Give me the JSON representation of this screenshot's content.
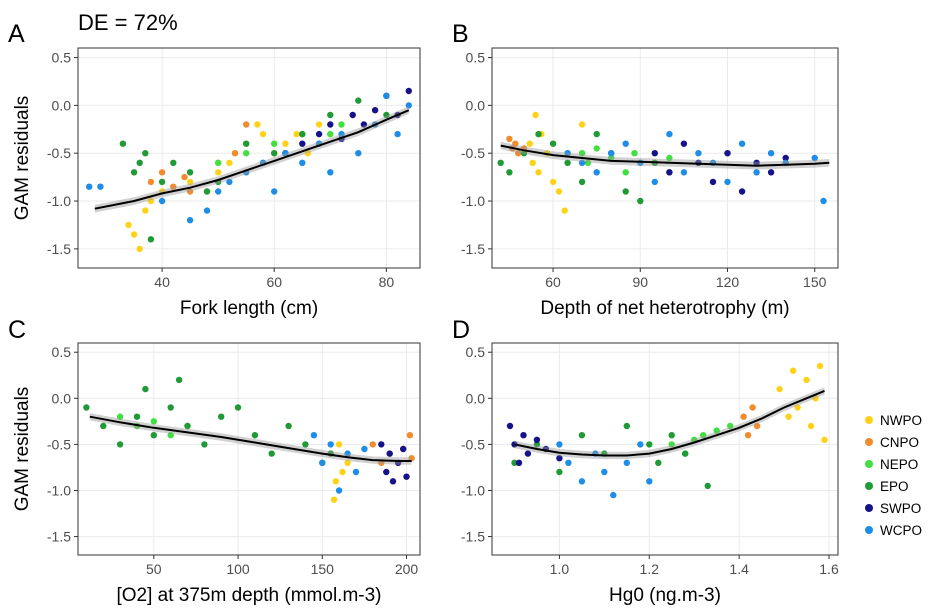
{
  "figure": {
    "header": "DE = 72%",
    "ylabel": "GAM residuals",
    "legend": [
      {
        "label": "NWPO",
        "color": "#FFD21A"
      },
      {
        "label": "CNPO",
        "color": "#F28A2E"
      },
      {
        "label": "NEPO",
        "color": "#3FE03F"
      },
      {
        "label": "EPO",
        "color": "#1F9A35"
      },
      {
        "label": "SWPO",
        "color": "#16128A"
      },
      {
        "label": "WCPO",
        "color": "#1E8DE8"
      }
    ]
  },
  "chart_data": [
    {
      "panel": "A",
      "type": "scatter",
      "xlabel": "Fork length (cm)",
      "ylabel": "GAM residuals",
      "xlim": [
        25,
        86
      ],
      "ylim": [
        -1.7,
        0.6
      ],
      "xticks": [
        40,
        60,
        80
      ],
      "yticks": [
        -1.5,
        -1.0,
        -0.5,
        0.0,
        0.5
      ],
      "ytick_labels": [
        "-1.5",
        "-1.0",
        "-0.5",
        "0.0",
        "0.5"
      ],
      "series": [
        {
          "name": "NWPO",
          "x": [
            34,
            35,
            36,
            37,
            38,
            40,
            45,
            48,
            50,
            52,
            55,
            57,
            58,
            60,
            62,
            64,
            66,
            68,
            70
          ],
          "y": [
            -1.25,
            -1.35,
            -1.5,
            -1.1,
            -1.0,
            -0.9,
            -0.8,
            -0.9,
            -0.7,
            -0.6,
            -0.4,
            -0.2,
            -0.3,
            -0.5,
            -0.4,
            -0.3,
            -0.5,
            -0.2,
            -0.3
          ]
        },
        {
          "name": "CNPO",
          "x": [
            38,
            40,
            42,
            44,
            45,
            50,
            53,
            55
          ],
          "y": [
            -0.8,
            -0.7,
            -0.85,
            -0.75,
            -0.9,
            -0.6,
            -0.5,
            -0.2
          ]
        },
        {
          "name": "NEPO",
          "x": [
            50,
            55,
            58,
            60,
            62,
            65,
            68,
            70,
            72
          ],
          "y": [
            -0.6,
            -0.5,
            -0.6,
            -0.4,
            -0.5,
            -0.3,
            -0.4,
            -0.3,
            -0.2
          ]
        },
        {
          "name": "EPO",
          "x": [
            33,
            35,
            36,
            37,
            38,
            40,
            42,
            45,
            48,
            50,
            55,
            60,
            65,
            70,
            75,
            80
          ],
          "y": [
            -0.4,
            -0.7,
            -0.6,
            -0.5,
            -1.4,
            -0.8,
            -0.6,
            -0.7,
            -0.9,
            -0.8,
            -0.4,
            -0.5,
            -0.3,
            -0.1,
            0.05,
            -0.1
          ]
        },
        {
          "name": "SWPO",
          "x": [
            62,
            65,
            68,
            70,
            72,
            74,
            76,
            78,
            80,
            82,
            84
          ],
          "y": [
            -0.5,
            -0.4,
            -0.3,
            -0.2,
            -0.35,
            -0.1,
            -0.2,
            -0.05,
            0.1,
            -0.1,
            0.15
          ]
        },
        {
          "name": "WCPO",
          "x": [
            27,
            29,
            40,
            45,
            48,
            50,
            52,
            55,
            58,
            60,
            62,
            65,
            68,
            70,
            72,
            75,
            78,
            80,
            82,
            84
          ],
          "y": [
            -0.85,
            -0.85,
            -1.0,
            -1.2,
            -1.1,
            -0.9,
            -0.8,
            -0.7,
            -0.6,
            -0.9,
            -0.5,
            -0.6,
            -0.4,
            -0.7,
            -0.3,
            -0.5,
            -0.2,
            0.1,
            -0.3,
            0.0
          ]
        }
      ],
      "trend": {
        "x": [
          28,
          35,
          40,
          45,
          50,
          55,
          60,
          65,
          70,
          75,
          80,
          84
        ],
        "y": [
          -1.08,
          -1.0,
          -0.92,
          -0.86,
          -0.78,
          -0.68,
          -0.58,
          -0.48,
          -0.38,
          -0.28,
          -0.15,
          -0.05
        ]
      }
    },
    {
      "panel": "B",
      "type": "scatter",
      "xlabel": "Depth of net heterotrophy (m)",
      "xlim": [
        39,
        158
      ],
      "ylim": [
        -1.7,
        0.6
      ],
      "xticks": [
        60,
        90,
        120,
        150
      ],
      "yticks": [
        -1.5,
        -1.0,
        -0.5,
        0.0,
        0.5
      ],
      "ytick_labels": [
        "-1.5",
        "-1.0",
        "-0.5",
        "0.0",
        "0.5"
      ],
      "series": [
        {
          "name": "NWPO",
          "x": [
            52,
            53,
            54,
            55,
            56,
            58,
            60,
            62,
            64,
            65,
            70
          ],
          "y": [
            -0.4,
            -0.6,
            -0.1,
            -0.7,
            -0.3,
            -0.5,
            -0.8,
            -0.9,
            -1.1,
            -0.5,
            -0.2
          ]
        },
        {
          "name": "CNPO",
          "x": [
            45,
            46,
            47,
            48,
            50
          ],
          "y": [
            -0.35,
            -0.45,
            -0.4,
            -0.5,
            -0.45
          ]
        },
        {
          "name": "NEPO",
          "x": [
            70,
            72,
            75,
            80,
            85,
            88,
            95,
            100
          ],
          "y": [
            -0.5,
            -0.6,
            -0.45,
            -0.55,
            -0.7,
            -0.5,
            -0.6,
            -0.55
          ]
        },
        {
          "name": "EPO",
          "x": [
            42,
            45,
            50,
            55,
            60,
            65,
            70,
            75,
            80,
            85,
            90,
            95,
            100
          ],
          "y": [
            -0.6,
            -0.7,
            -0.5,
            -0.3,
            -0.4,
            -0.6,
            -0.8,
            -0.3,
            -0.5,
            -0.9,
            -1.0,
            -0.6,
            -0.7
          ]
        },
        {
          "name": "SWPO",
          "x": [
            95,
            100,
            105,
            110,
            115,
            120,
            125,
            130,
            135,
            140
          ],
          "y": [
            -0.5,
            -0.7,
            -0.4,
            -0.6,
            -0.8,
            -0.5,
            -0.9,
            -0.6,
            -0.7,
            -0.55
          ]
        },
        {
          "name": "WCPO",
          "x": [
            65,
            70,
            75,
            80,
            85,
            90,
            95,
            100,
            105,
            110,
            115,
            120,
            125,
            130,
            135,
            140,
            150,
            153
          ],
          "y": [
            -0.5,
            -0.6,
            -0.7,
            -0.5,
            -0.4,
            -0.6,
            -0.8,
            -0.3,
            -0.7,
            -0.5,
            -0.6,
            -0.8,
            -0.4,
            -0.7,
            -0.5,
            -0.6,
            -0.55,
            -1.0
          ]
        }
      ],
      "trend": {
        "x": [
          42,
          50,
          60,
          70,
          80,
          90,
          100,
          110,
          120,
          130,
          140,
          150,
          155
        ],
        "y": [
          -0.42,
          -0.47,
          -0.52,
          -0.55,
          -0.58,
          -0.59,
          -0.6,
          -0.61,
          -0.62,
          -0.63,
          -0.62,
          -0.61,
          -0.6
        ]
      }
    },
    {
      "panel": "C",
      "type": "scatter",
      "xlabel": "[O2] at 375m depth (mmol.m-3)",
      "ylabel": "GAM residuals",
      "xlim": [
        5,
        208
      ],
      "ylim": [
        -1.7,
        0.6
      ],
      "xticks": [
        50,
        100,
        150,
        200
      ],
      "yticks": [
        -1.5,
        -1.0,
        -0.5,
        0.0,
        0.5
      ],
      "ytick_labels": [
        "-1.5",
        "-1.0",
        "-0.5",
        "0.0",
        "0.5"
      ],
      "series": [
        {
          "name": "NWPO",
          "x": [
            155,
            157,
            158,
            160,
            162,
            165
          ],
          "y": [
            -0.6,
            -1.1,
            -0.9,
            -0.5,
            -0.8,
            -0.7
          ]
        },
        {
          "name": "CNPO",
          "x": [
            180,
            185,
            190,
            198,
            202,
            203
          ],
          "y": [
            -0.5,
            -0.7,
            -0.6,
            -0.55,
            -0.4,
            -0.65
          ]
        },
        {
          "name": "NEPO",
          "x": [
            30,
            40,
            50,
            60,
            70
          ],
          "y": [
            -0.2,
            -0.3,
            -0.25,
            -0.4,
            -0.3
          ]
        },
        {
          "name": "EPO",
          "x": [
            10,
            20,
            30,
            40,
            45,
            50,
            60,
            65,
            70,
            80,
            90,
            100,
            110,
            120,
            130,
            140,
            150,
            155
          ],
          "y": [
            -0.1,
            -0.3,
            -0.5,
            -0.2,
            0.1,
            -0.4,
            -0.1,
            0.2,
            -0.3,
            -0.5,
            -0.2,
            -0.1,
            -0.4,
            -0.6,
            -0.3,
            -0.5,
            -0.7,
            -0.6
          ]
        },
        {
          "name": "SWPO",
          "x": [
            185,
            188,
            190,
            192,
            195,
            198,
            200
          ],
          "y": [
            -0.5,
            -0.8,
            -0.6,
            -0.9,
            -0.7,
            -0.55,
            -0.85
          ]
        },
        {
          "name": "WCPO",
          "x": [
            145,
            150,
            155,
            160,
            165,
            170,
            175
          ],
          "y": [
            -0.4,
            -0.7,
            -0.5,
            -1.0,
            -0.6,
            -0.8,
            -0.55
          ]
        }
      ],
      "trend": {
        "x": [
          12,
          30,
          50,
          70,
          90,
          110,
          130,
          150,
          165,
          180,
          195,
          203
        ],
        "y": [
          -0.2,
          -0.26,
          -0.32,
          -0.37,
          -0.42,
          -0.48,
          -0.54,
          -0.6,
          -0.64,
          -0.67,
          -0.68,
          -0.68
        ]
      }
    },
    {
      "panel": "D",
      "type": "scatter",
      "xlabel": "Hg0 (ng.m-3)",
      "xlim": [
        0.85,
        1.62
      ],
      "ylim": [
        -1.7,
        0.6
      ],
      "xticks": [
        1.0,
        1.2,
        1.4,
        1.6
      ],
      "xtick_labels": [
        "1.0",
        "1.2",
        "1.4",
        "1.6"
      ],
      "yticks": [
        -1.5,
        -1.0,
        -0.5,
        0.0,
        0.5
      ],
      "ytick_labels": [
        "-1.5",
        "-1.0",
        "-0.5",
        "0.0",
        "0.5"
      ],
      "series": [
        {
          "name": "NWPO",
          "x": [
            1.49,
            1.51,
            1.52,
            1.53,
            1.55,
            1.56,
            1.57,
            1.58,
            1.59
          ],
          "y": [
            0.1,
            -0.2,
            0.3,
            -0.1,
            0.2,
            -0.3,
            0.0,
            0.35,
            -0.45
          ]
        },
        {
          "name": "CNPO",
          "x": [
            1.41,
            1.42,
            1.43,
            1.44
          ],
          "y": [
            -0.2,
            -0.4,
            -0.1,
            -0.3
          ]
        },
        {
          "name": "NEPO",
          "x": [
            1.25,
            1.28,
            1.3,
            1.32,
            1.35,
            1.38
          ],
          "y": [
            -0.5,
            -0.6,
            -0.45,
            -0.4,
            -0.35,
            -0.3
          ]
        },
        {
          "name": "EPO",
          "x": [
            0.9,
            0.95,
            1.0,
            1.05,
            1.1,
            1.15,
            1.2,
            1.22,
            1.25,
            1.28,
            1.33
          ],
          "y": [
            -0.7,
            -0.5,
            -0.8,
            -0.4,
            -0.6,
            -0.3,
            -0.5,
            -0.7,
            -0.4,
            -0.6,
            -0.95
          ]
        },
        {
          "name": "SWPO",
          "x": [
            0.89,
            0.9,
            0.91,
            0.92,
            0.93,
            0.95,
            0.97,
            1.0
          ],
          "y": [
            -0.3,
            -0.5,
            -0.7,
            -0.4,
            -0.6,
            -0.45,
            -0.55,
            -0.65
          ]
        },
        {
          "name": "WCPO",
          "x": [
            1.0,
            1.02,
            1.05,
            1.08,
            1.1,
            1.12,
            1.15,
            1.18,
            1.2
          ],
          "y": [
            -0.5,
            -0.7,
            -0.9,
            -0.6,
            -0.8,
            -1.05,
            -0.7,
            -0.5,
            -0.9
          ]
        }
      ],
      "trend": {
        "x": [
          0.9,
          0.95,
          1.0,
          1.05,
          1.1,
          1.15,
          1.2,
          1.25,
          1.3,
          1.35,
          1.4,
          1.45,
          1.5,
          1.55,
          1.59
        ],
        "y": [
          -0.5,
          -0.55,
          -0.59,
          -0.61,
          -0.62,
          -0.62,
          -0.6,
          -0.55,
          -0.48,
          -0.4,
          -0.32,
          -0.22,
          -0.1,
          0.0,
          0.08
        ]
      }
    }
  ]
}
